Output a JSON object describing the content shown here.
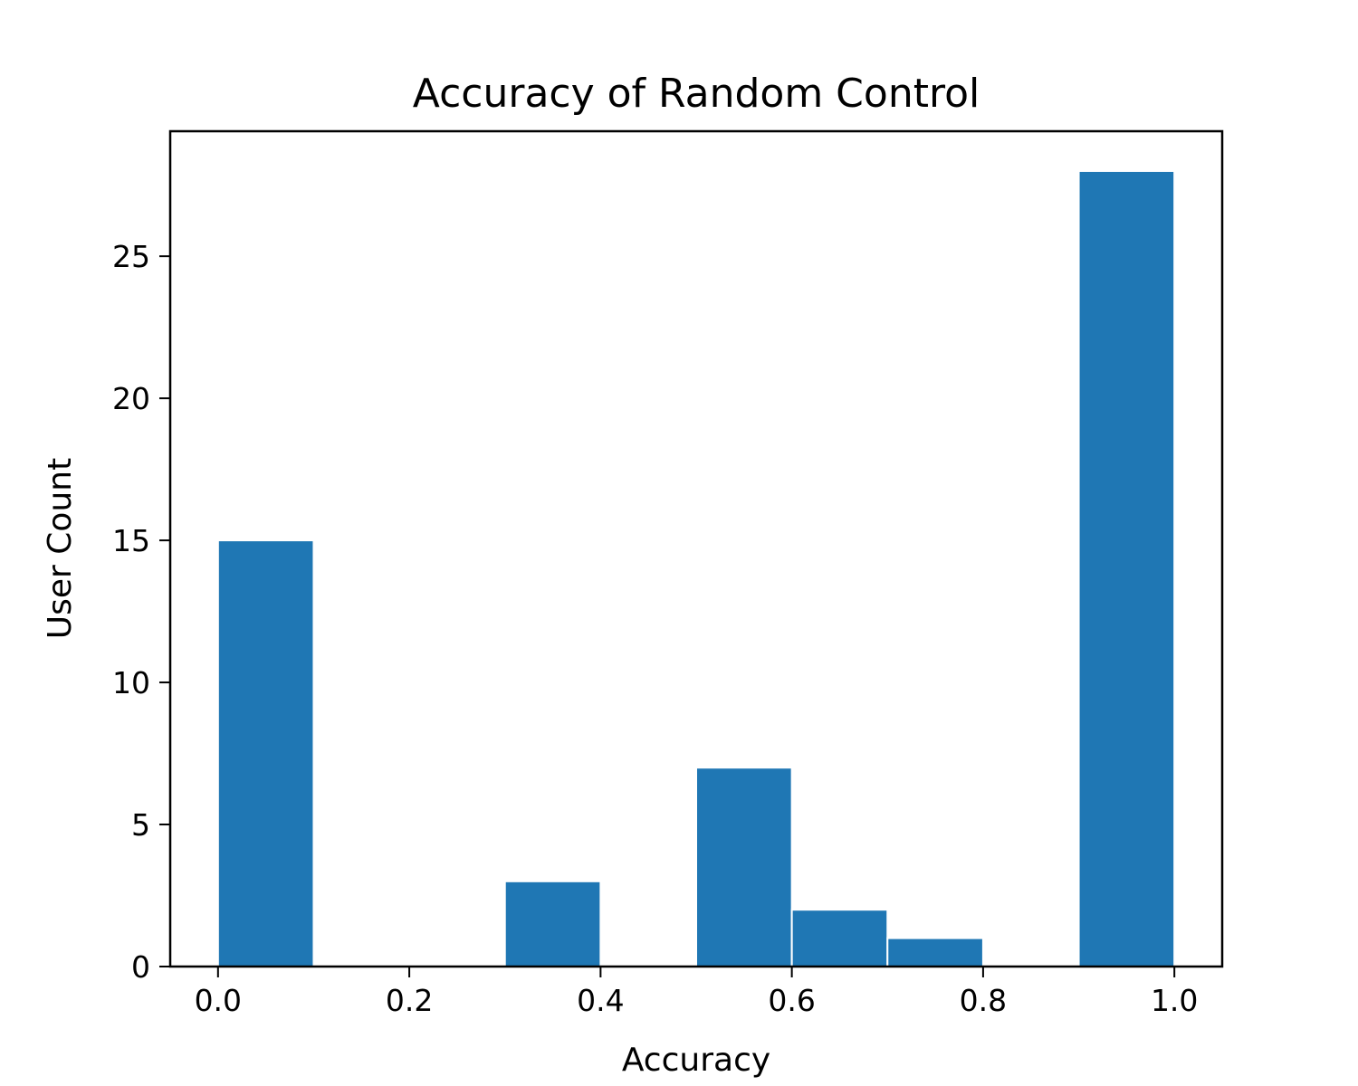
{
  "chart_data": {
    "type": "bar",
    "title": "Accuracy of Random Control",
    "xlabel": "Accuracy",
    "ylabel": "User Count",
    "bins": [
      {
        "x0": 0.0,
        "x1": 0.1,
        "count": 15
      },
      {
        "x0": 0.1,
        "x1": 0.2,
        "count": 0
      },
      {
        "x0": 0.2,
        "x1": 0.3,
        "count": 0
      },
      {
        "x0": 0.3,
        "x1": 0.4,
        "count": 3
      },
      {
        "x0": 0.4,
        "x1": 0.5,
        "count": 0
      },
      {
        "x0": 0.5,
        "x1": 0.6,
        "count": 7
      },
      {
        "x0": 0.6,
        "x1": 0.7,
        "count": 2
      },
      {
        "x0": 0.7,
        "x1": 0.8,
        "count": 1
      },
      {
        "x0": 0.8,
        "x1": 0.9,
        "count": 0
      },
      {
        "x0": 0.9,
        "x1": 1.0,
        "count": 28
      }
    ],
    "xlim": [
      -0.05,
      1.05
    ],
    "ylim": [
      0,
      29.4
    ],
    "xticks": [
      0.0,
      0.2,
      0.4,
      0.6,
      0.8,
      1.0
    ],
    "xtick_labels": [
      "0.0",
      "0.2",
      "0.4",
      "0.6",
      "0.8",
      "1.0"
    ],
    "yticks": [
      0,
      5,
      10,
      15,
      20,
      25
    ],
    "ytick_labels": [
      "0",
      "5",
      "10",
      "15",
      "20",
      "25"
    ],
    "bar_color": "#1f77b4",
    "bar_edge_color": "#ffffff",
    "grid": false,
    "legend": false
  }
}
